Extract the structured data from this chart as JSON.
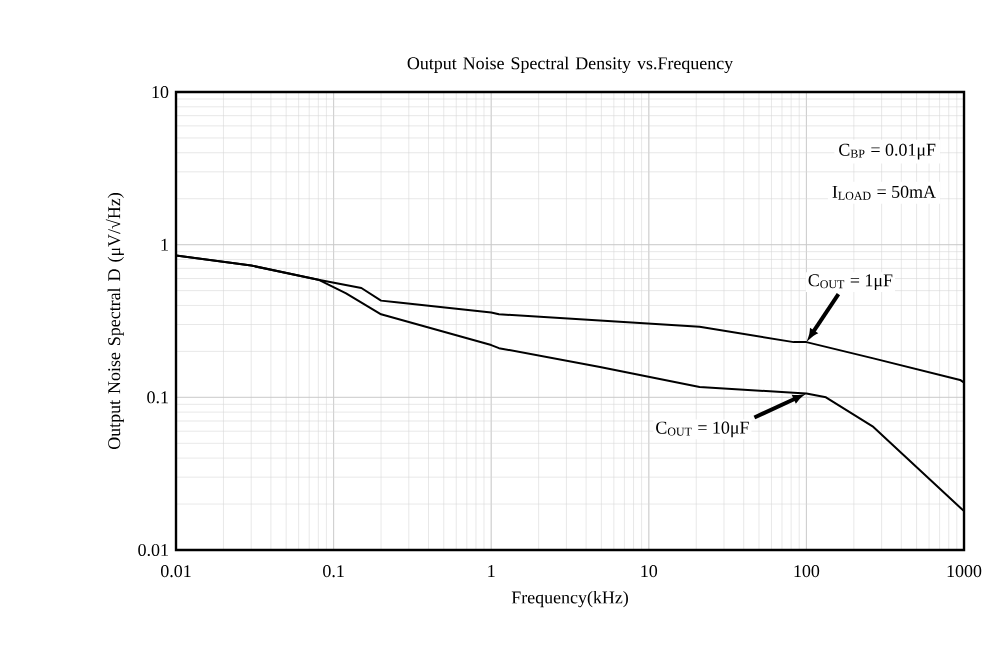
{
  "chart_data": {
    "type": "line",
    "title": "Output Noise Spectral Density vs.Frequency",
    "xlabel": "Frequency(kHz)",
    "ylabel": "Output Noise Spectral D (μV/√Hz)",
    "log": "xy",
    "grid": true,
    "xlim": [
      0.01,
      1000
    ],
    "ylim": [
      0.01,
      10
    ],
    "xticks": [
      0.01,
      0.1,
      1,
      10,
      100,
      1000
    ],
    "yticks": [
      0.01,
      0.1,
      1,
      10
    ],
    "series": [
      {
        "color": "#000000",
        "x": [
          0.01,
          0.03,
          0.08,
          0.15,
          0.2,
          0.25,
          1,
          1.12,
          21,
          83,
          100,
          266,
          944,
          1000
        ],
        "values": [
          0.85,
          0.73,
          0.59,
          0.52,
          0.43,
          0.42,
          0.36,
          0.35,
          0.29,
          0.23,
          0.23,
          0.18,
          0.13,
          0.125
        ]
      },
      {
        "color": "#000000",
        "x": [
          0.01,
          0.03,
          0.08,
          0.12,
          0.2,
          1,
          1.12,
          4.9,
          21,
          83,
          100,
          133,
          266,
          944,
          1000
        ],
        "values": [
          0.85,
          0.73,
          0.59,
          0.48,
          0.35,
          0.22,
          0.21,
          0.158,
          0.117,
          0.107,
          0.106,
          0.1,
          0.064,
          0.019,
          0.018
        ]
      }
    ],
    "annotations": [
      "C$_{BP}$ = 0.01μF",
      "I$_{LOAD}$ = 50mA",
      {
        "text": "C$_{OUT}$ = 1μF",
        "x": 100,
        "y": 0.23
      },
      {
        "text": "C$_{OUT}$ = 10μF",
        "x": 100,
        "y": 0.106
      }
    ]
  }
}
